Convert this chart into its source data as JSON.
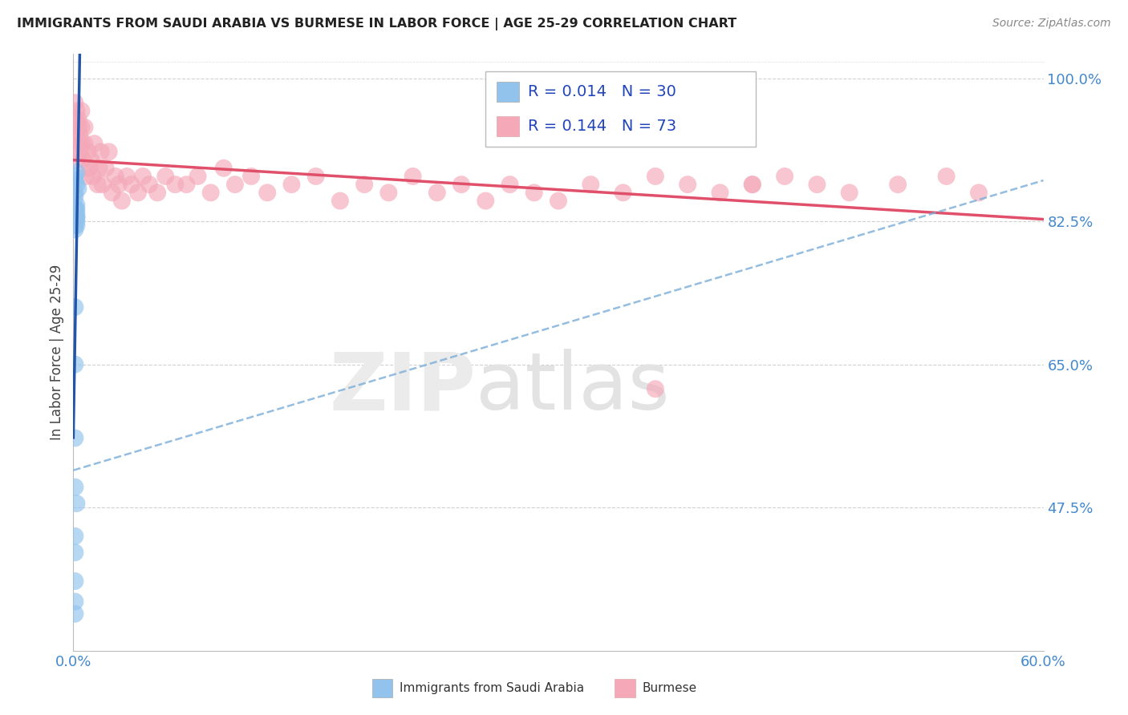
{
  "title": "IMMIGRANTS FROM SAUDI ARABIA VS BURMESE IN LABOR FORCE | AGE 25-29 CORRELATION CHART",
  "source": "Source: ZipAtlas.com",
  "ylabel": "In Labor Force | Age 25-29",
  "xmin": 0.0,
  "xmax": 0.6,
  "ymin": 0.3,
  "ymax": 1.03,
  "legend_saudi_r": "0.014",
  "legend_saudi_n": "30",
  "legend_burmese_r": "0.144",
  "legend_burmese_n": "73",
  "saudi_color": "#91C3ED",
  "burmese_color": "#F4A8B8",
  "saudi_line_color": "#2255AA",
  "burmese_line_color": "#E0506A",
  "dashed_color": "#7AADD8",
  "background_color": "#ffffff",
  "grid_color": "#cccccc",
  "ytick_values": [
    1.0,
    0.825,
    0.65,
    0.475
  ],
  "ytick_labels": [
    "100.0%",
    "82.5%",
    "65.0%",
    "47.5%"
  ],
  "tick_color": "#4488CC",
  "saudi_x": [
    0.001,
    0.002,
    0.002,
    0.001,
    0.003,
    0.001,
    0.002,
    0.001,
    0.002,
    0.001,
    0.001,
    0.002,
    0.001,
    0.002,
    0.001,
    0.002,
    0.001,
    0.002,
    0.002,
    0.001,
    0.001,
    0.001,
    0.001,
    0.001,
    0.002,
    0.001,
    0.001,
    0.001,
    0.001,
    0.001
  ],
  "saudi_y": [
    0.88,
    0.87,
    0.885,
    0.86,
    0.865,
    0.855,
    0.845,
    0.875,
    0.84,
    0.835,
    0.82,
    0.83,
    0.84,
    0.83,
    0.84,
    0.835,
    0.84,
    0.825,
    0.82,
    0.815,
    0.72,
    0.65,
    0.56,
    0.5,
    0.48,
    0.44,
    0.42,
    0.385,
    0.36,
    0.345
  ],
  "burmese_x": [
    0.001,
    0.001,
    0.002,
    0.002,
    0.002,
    0.003,
    0.003,
    0.003,
    0.004,
    0.004,
    0.005,
    0.005,
    0.005,
    0.006,
    0.007,
    0.007,
    0.008,
    0.009,
    0.01,
    0.011,
    0.012,
    0.013,
    0.015,
    0.016,
    0.017,
    0.018,
    0.02,
    0.022,
    0.024,
    0.026,
    0.028,
    0.03,
    0.033,
    0.036,
    0.04,
    0.043,
    0.047,
    0.052,
    0.057,
    0.063,
    0.07,
    0.077,
    0.085,
    0.093,
    0.1,
    0.11,
    0.12,
    0.135,
    0.15,
    0.165,
    0.18,
    0.195,
    0.21,
    0.225,
    0.24,
    0.255,
    0.27,
    0.285,
    0.3,
    0.32,
    0.34,
    0.36,
    0.38,
    0.4,
    0.42,
    0.44,
    0.46,
    0.48,
    0.51,
    0.54,
    0.36,
    0.42,
    0.56
  ],
  "burmese_y": [
    0.97,
    0.95,
    0.93,
    0.9,
    0.96,
    0.94,
    0.92,
    0.95,
    0.93,
    0.91,
    0.94,
    0.92,
    0.96,
    0.9,
    0.92,
    0.94,
    0.88,
    0.91,
    0.89,
    0.9,
    0.88,
    0.92,
    0.87,
    0.89,
    0.91,
    0.87,
    0.89,
    0.91,
    0.86,
    0.88,
    0.87,
    0.85,
    0.88,
    0.87,
    0.86,
    0.88,
    0.87,
    0.86,
    0.88,
    0.87,
    0.87,
    0.88,
    0.86,
    0.89,
    0.87,
    0.88,
    0.86,
    0.87,
    0.88,
    0.85,
    0.87,
    0.86,
    0.88,
    0.86,
    0.87,
    0.85,
    0.87,
    0.86,
    0.85,
    0.87,
    0.86,
    0.88,
    0.87,
    0.86,
    0.87,
    0.88,
    0.87,
    0.86,
    0.87,
    0.88,
    0.62,
    0.87,
    0.86
  ],
  "watermark_zip_color": "#E8E8E8",
  "watermark_atlas_color": "#E0E0E0"
}
